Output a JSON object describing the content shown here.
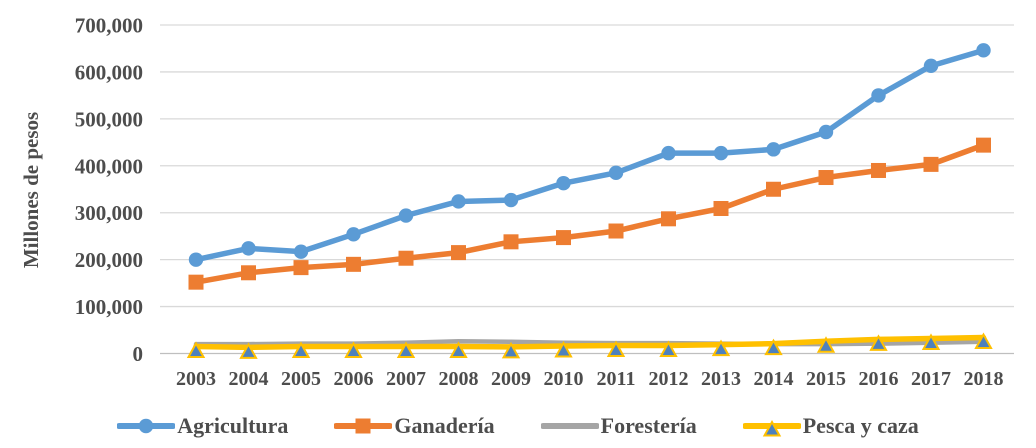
{
  "chart_data": {
    "type": "line",
    "title": "",
    "xlabel": "",
    "ylabel": "Millones de pesos",
    "ylim": [
      0,
      700000
    ],
    "ytick_step": 100000,
    "ytick_labels": [
      "0",
      "100,000",
      "200,000",
      "300,000",
      "400,000",
      "500,000",
      "600,000",
      "700,000"
    ],
    "grid": true,
    "legend_position": "bottom",
    "categories": [
      "2003",
      "2004",
      "2005",
      "2006",
      "2007",
      "2008",
      "2009",
      "2010",
      "2011",
      "2012",
      "2013",
      "2014",
      "2015",
      "2016",
      "2017",
      "2018"
    ],
    "series": [
      {
        "name": "Agricultura",
        "color": "#5B9BD5",
        "marker": "circle",
        "values": [
          200000,
          224000,
          217000,
          254000,
          294000,
          324000,
          327000,
          363000,
          385000,
          427000,
          427000,
          435000,
          472000,
          550000,
          613000,
          646000
        ]
      },
      {
        "name": "Ganadería",
        "color": "#ED7D31",
        "marker": "square",
        "values": [
          152000,
          172000,
          183000,
          190000,
          203000,
          215000,
          238000,
          247000,
          261000,
          287000,
          309000,
          350000,
          375000,
          390000,
          403000,
          444000
        ]
      },
      {
        "name": "Forestería",
        "color": "#A5A5A5",
        "marker": "none",
        "values": [
          20000,
          20000,
          21000,
          21000,
          23000,
          26000,
          25000,
          23000,
          22000,
          22000,
          21000,
          20000,
          20000,
          21000,
          23000,
          25000
        ]
      },
      {
        "name": "Pesca y caza",
        "color": "#FFC000",
        "marker": "triangle",
        "marker_fill": "#4E81BD",
        "values": [
          15000,
          13000,
          15000,
          15000,
          15000,
          15000,
          14000,
          16000,
          17000,
          17000,
          19000,
          21000,
          26000,
          30000,
          32000,
          34000
        ]
      }
    ],
    "colors": {
      "grid": "#D9D9D9",
      "axis": "#BFBFBF",
      "text": "#4d4d4d"
    }
  }
}
